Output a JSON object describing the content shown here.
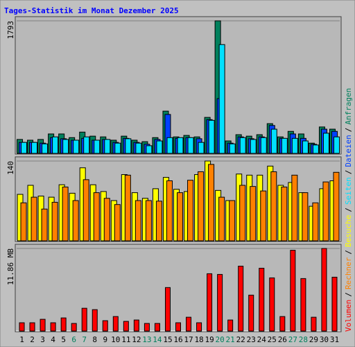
{
  "chart_data": [
    {
      "type": "bar",
      "title": "Tages-Statistik im Monat Dezember 2025",
      "ylim": [
        0,
        1793
      ],
      "yticks": [
        1793
      ],
      "series": [
        {
          "name": "Anfragen",
          "color": "#00805c",
          "values": [
            180,
            170,
            180,
            255,
            255,
            205,
            280,
            225,
            215,
            170,
            225,
            170,
            150,
            205,
            565,
            215,
            235,
            215,
            480,
            1793,
            160,
            245,
            225,
            245,
            395,
            215,
            290,
            255,
            130,
            350,
            320
          ]
        },
        {
          "name": "Dateien",
          "color": "#0040ff",
          "values": [
            140,
            140,
            130,
            205,
            190,
            170,
            195,
            170,
            180,
            140,
            195,
            140,
            115,
            180,
            520,
            195,
            205,
            190,
            450,
            735,
            130,
            215,
            190,
            215,
            370,
            195,
            255,
            195,
            115,
            320,
            290
          ]
        },
        {
          "name": "Seiten",
          "color": "#00e0ff",
          "values": [
            140,
            140,
            120,
            215,
            180,
            170,
            215,
            170,
            180,
            130,
            190,
            130,
            95,
            160,
            205,
            205,
            205,
            140,
            440,
            1470,
            120,
            205,
            180,
            205,
            320,
            195,
            195,
            160,
            105,
            265,
            215
          ]
        }
      ]
    },
    {
      "type": "bar",
      "ylim": [
        0,
        140
      ],
      "yticks": [
        140
      ],
      "series": [
        {
          "name": "Besuche",
          "color": "#ffff00",
          "values": [
            81,
            97,
            78,
            76,
            98,
            83,
            128,
            98,
            86,
            70,
            116,
            84,
            74,
            91,
            111,
            90,
            86,
            116,
            140,
            88,
            70,
            117,
            115,
            115,
            131,
            97,
            102,
            84,
            60,
            91,
            105
          ]
        },
        {
          "name": "Rechner",
          "color": "#ff8000",
          "values": [
            66,
            76,
            55,
            67,
            94,
            70,
            107,
            84,
            74,
            63,
            115,
            70,
            70,
            69,
            105,
            84,
            106,
            121,
            134,
            76,
            70,
            97,
            95,
            87,
            121,
            94,
            115,
            84,
            66,
            103,
            120
          ]
        }
      ]
    },
    {
      "type": "bar",
      "ylim": [
        0,
        11.86
      ],
      "yticks": [
        {
          "value": 11.86,
          "label": "11.86 MB"
        }
      ],
      "categories": [
        "1",
        "2",
        "3",
        "4",
        "5",
        "6",
        "7",
        "8",
        "9",
        "10",
        "11",
        "12",
        "13",
        "14",
        "15",
        "16",
        "17",
        "18",
        "19",
        "20",
        "21",
        "22",
        "23",
        "24",
        "25",
        "26",
        "27",
        "28",
        "29",
        "30",
        "31"
      ],
      "category_colors": [
        "#000000",
        "#000000",
        "#000000",
        "#000000",
        "#000000",
        "#00805c",
        "#00805c",
        "#000000",
        "#000000",
        "#000000",
        "#000000",
        "#000000",
        "#00805c",
        "#00805c",
        "#000000",
        "#000000",
        "#000000",
        "#000000",
        "#000000",
        "#00805c",
        "#00805c",
        "#000000",
        "#000000",
        "#000000",
        "#000000",
        "#000000",
        "#00805c",
        "#00805c",
        "#000000",
        "#000000",
        "#000000"
      ],
      "legend_separator": "/",
      "series": [
        {
          "name": "Volumen",
          "color": "#ff0000",
          "values": [
            1.1,
            1.1,
            1.6,
            1.1,
            1.8,
            1.0,
            3.2,
            3.0,
            1.4,
            2.0,
            1.3,
            1.5,
            1.0,
            1.0,
            6.2,
            1.1,
            1.9,
            1.1,
            8.2,
            8.1,
            1.5,
            9.3,
            5.1,
            9.0,
            7.6,
            2.0,
            11.6,
            7.5,
            1.9,
            11.86,
            7.7
          ]
        }
      ]
    }
  ]
}
